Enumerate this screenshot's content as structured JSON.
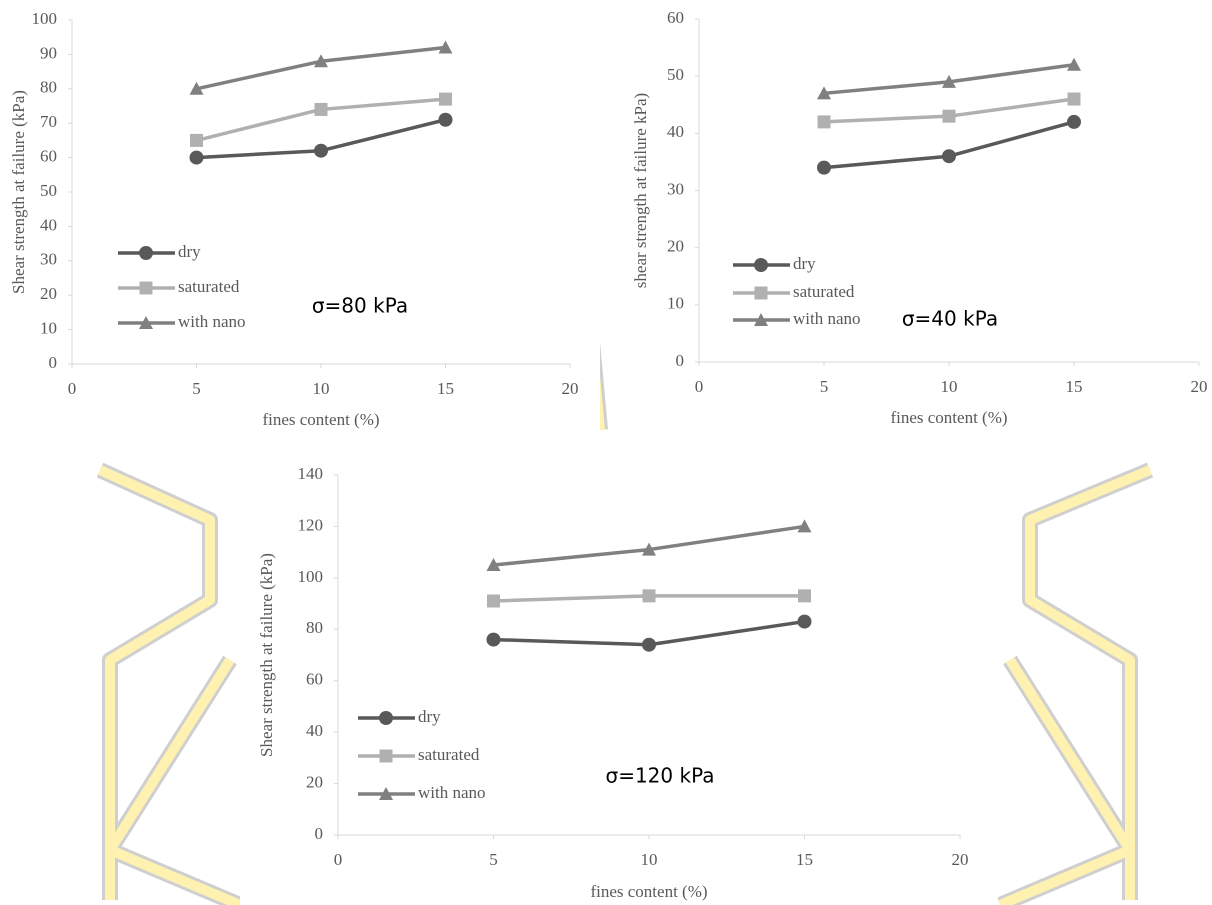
{
  "chart_data": [
    {
      "type": "line",
      "x": [
        5,
        10,
        15
      ],
      "xlim": [
        0,
        20
      ],
      "xticks": [
        0,
        5,
        10,
        15,
        20
      ],
      "ylim": [
        0,
        100
      ],
      "yticks": [
        0,
        10,
        20,
        30,
        40,
        50,
        60,
        70,
        80,
        90,
        100
      ],
      "x_label": "fines content (%)",
      "y_label": "Shear strength at failure (kPa)",
      "annotation": "σ=80 kPa",
      "series": [
        {
          "name": "dry",
          "color": "#595959",
          "marker": "circle",
          "values": [
            60,
            62,
            71
          ]
        },
        {
          "name": "saturated",
          "color": "#b0b0b0",
          "marker": "square",
          "values": [
            65,
            74,
            77
          ]
        },
        {
          "name": "with nano",
          "color": "#808080",
          "marker": "triangle",
          "values": [
            80,
            88,
            92
          ]
        }
      ]
    },
    {
      "type": "line",
      "x": [
        5,
        10,
        15
      ],
      "xlim": [
        0,
        20
      ],
      "xticks": [
        0,
        5,
        10,
        15,
        20
      ],
      "ylim": [
        0,
        60
      ],
      "yticks": [
        0,
        10,
        20,
        30,
        40,
        50,
        60
      ],
      "x_label": "fines content (%)",
      "y_label": "shear strength at failure kPa)",
      "annotation": "σ=40 kPa",
      "series": [
        {
          "name": "dry",
          "color": "#595959",
          "marker": "circle",
          "values": [
            34,
            36,
            42
          ]
        },
        {
          "name": "saturated",
          "color": "#b0b0b0",
          "marker": "square",
          "values": [
            42,
            43,
            46
          ]
        },
        {
          "name": "with nano",
          "color": "#808080",
          "marker": "triangle",
          "values": [
            47,
            49,
            52
          ]
        }
      ]
    },
    {
      "type": "line",
      "x": [
        5,
        10,
        15
      ],
      "xlim": [
        0,
        20
      ],
      "xticks": [
        0,
        5,
        10,
        15,
        20
      ],
      "ylim": [
        0,
        140
      ],
      "yticks": [
        0,
        20,
        40,
        60,
        80,
        100,
        120,
        140
      ],
      "x_label": "fines content (%)",
      "y_label": "Shear strength at failure (kPa)",
      "annotation": "σ=120 kPa",
      "series": [
        {
          "name": "dry",
          "color": "#595959",
          "marker": "circle",
          "values": [
            76,
            74,
            83
          ]
        },
        {
          "name": "saturated",
          "color": "#b0b0b0",
          "marker": "square",
          "values": [
            91,
            93,
            93
          ]
        },
        {
          "name": "with nano",
          "color": "#808080",
          "marker": "triangle",
          "values": [
            105,
            111,
            120
          ]
        }
      ]
    }
  ]
}
